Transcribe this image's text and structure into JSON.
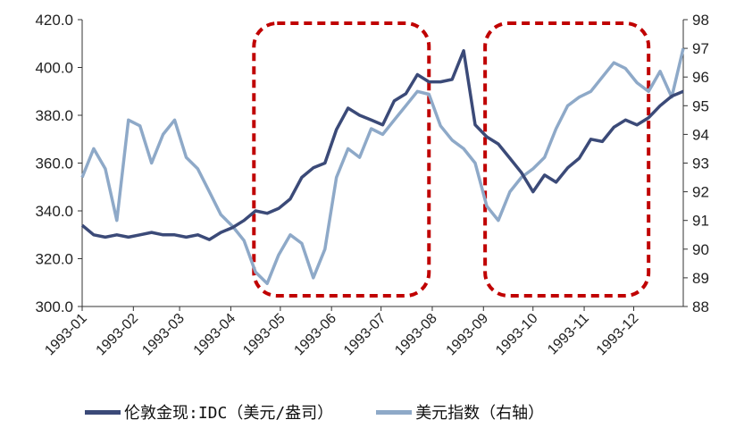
{
  "chart_data": {
    "type": "line",
    "x_ticks": [
      "1993-01",
      "1993-02",
      "1993-03",
      "1993-04",
      "1993-05",
      "1993-06",
      "1993-07",
      "1993-08",
      "1993-09",
      "1993-10",
      "1993-11",
      "1993-12"
    ],
    "y_left_ticks": [
      "300.0",
      "320.0",
      "340.0",
      "360.0",
      "380.0",
      "400.0",
      "420.0"
    ],
    "y_left_range": [
      300,
      420
    ],
    "y_right_ticks": [
      "88",
      "89",
      "90",
      "91",
      "92",
      "93",
      "94",
      "95",
      "96",
      "97",
      "98"
    ],
    "y_right_range": [
      88,
      98
    ],
    "series": [
      {
        "name": "伦敦金现:IDC（美元/盎司）",
        "axis": "left",
        "color": "#3b4a78",
        "x": [
          "1993-01-01",
          "1993-01-08",
          "1993-01-15",
          "1993-01-22",
          "1993-01-29",
          "1993-02-05",
          "1993-02-12",
          "1993-02-19",
          "1993-02-26",
          "1993-03-05",
          "1993-03-12",
          "1993-03-19",
          "1993-03-26",
          "1993-04-02",
          "1993-04-09",
          "1993-04-16",
          "1993-04-23",
          "1993-04-30",
          "1993-05-07",
          "1993-05-14",
          "1993-05-21",
          "1993-05-28",
          "1993-06-04",
          "1993-06-11",
          "1993-06-18",
          "1993-06-25",
          "1993-07-02",
          "1993-07-09",
          "1993-07-16",
          "1993-07-23",
          "1993-07-30",
          "1993-08-06",
          "1993-08-13",
          "1993-08-20",
          "1993-08-27",
          "1993-09-03",
          "1993-09-10",
          "1993-09-17",
          "1993-09-24",
          "1993-10-01",
          "1993-10-08",
          "1993-10-15",
          "1993-10-22",
          "1993-10-29",
          "1993-11-05",
          "1993-11-12",
          "1993-11-19",
          "1993-11-26",
          "1993-12-03",
          "1993-12-10",
          "1993-12-17",
          "1993-12-24",
          "1993-12-31"
        ],
        "values": [
          334,
          330,
          329,
          330,
          329,
          330,
          331,
          330,
          330,
          329,
          330,
          328,
          331,
          333,
          336,
          340,
          339,
          341,
          345,
          354,
          358,
          360,
          374,
          383,
          380,
          378,
          376,
          386,
          389,
          397,
          394,
          394,
          395,
          407,
          376,
          371,
          368,
          362,
          356,
          348,
          355,
          352,
          358,
          362,
          370,
          369,
          375,
          378,
          376,
          379,
          384,
          388,
          390
        ]
      },
      {
        "name": "美元指数（右轴）",
        "axis": "right",
        "color": "#8ea9c8",
        "x": [
          "1993-01-01",
          "1993-01-08",
          "1993-01-15",
          "1993-01-22",
          "1993-01-29",
          "1993-02-05",
          "1993-02-12",
          "1993-02-19",
          "1993-02-26",
          "1993-03-05",
          "1993-03-12",
          "1993-03-19",
          "1993-03-26",
          "1993-04-02",
          "1993-04-09",
          "1993-04-16",
          "1993-04-23",
          "1993-04-30",
          "1993-05-07",
          "1993-05-14",
          "1993-05-21",
          "1993-05-28",
          "1993-06-04",
          "1993-06-11",
          "1993-06-18",
          "1993-06-25",
          "1993-07-02",
          "1993-07-09",
          "1993-07-16",
          "1993-07-23",
          "1993-07-30",
          "1993-08-06",
          "1993-08-13",
          "1993-08-20",
          "1993-08-27",
          "1993-09-03",
          "1993-09-10",
          "1993-09-17",
          "1993-09-24",
          "1993-10-01",
          "1993-10-08",
          "1993-10-15",
          "1993-10-22",
          "1993-10-29",
          "1993-11-05",
          "1993-11-12",
          "1993-11-19",
          "1993-11-26",
          "1993-12-03",
          "1993-12-10",
          "1993-12-17",
          "1993-12-24",
          "1993-12-31"
        ],
        "values": [
          92.5,
          93.5,
          92.8,
          91.0,
          94.5,
          94.3,
          93.0,
          94.0,
          94.5,
          93.2,
          92.8,
          92.0,
          91.2,
          90.8,
          90.3,
          89.2,
          88.8,
          89.8,
          90.5,
          90.2,
          89.0,
          90.0,
          92.5,
          93.5,
          93.2,
          94.2,
          94.0,
          94.5,
          95.0,
          95.5,
          95.4,
          94.3,
          93.8,
          93.5,
          93.0,
          91.5,
          91.0,
          92.0,
          92.5,
          92.8,
          93.2,
          94.2,
          95.0,
          95.3,
          95.5,
          96.0,
          96.5,
          96.3,
          95.8,
          95.5,
          96.2,
          95.3,
          97.0
        ]
      }
    ],
    "annotations": [
      {
        "type": "dashed-rounded-rect",
        "color": "#c00000",
        "from": "1993-04-15",
        "to": "1993-07-30"
      },
      {
        "type": "dashed-rounded-rect",
        "color": "#c00000",
        "from": "1993-09-02",
        "to": "1993-12-10"
      }
    ],
    "legend_position": "bottom",
    "grid": false
  }
}
